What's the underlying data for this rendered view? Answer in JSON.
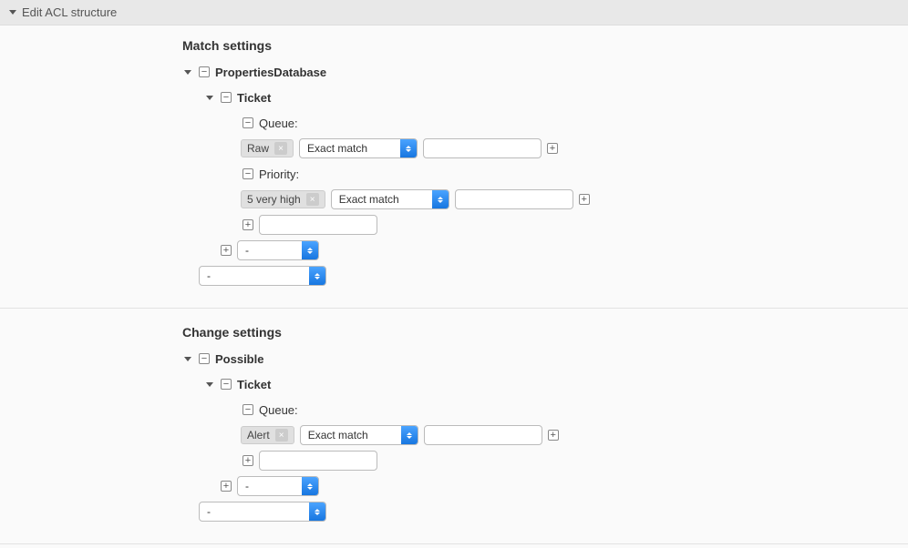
{
  "panel": {
    "title": "Edit ACL structure"
  },
  "match": {
    "title": "Match settings",
    "root": "PropertiesDatabase",
    "ticket": "Ticket",
    "queue": {
      "label": "Queue:",
      "tag": "Raw",
      "match_mode": "Exact match",
      "value": ""
    },
    "priority": {
      "label": "Priority:",
      "tag": "5 very high",
      "match_mode": "Exact match",
      "value": ""
    },
    "new_field_value": "",
    "field_select": "-",
    "root_select": "-"
  },
  "change": {
    "title": "Change settings",
    "root": "Possible",
    "ticket": "Ticket",
    "queue": {
      "label": "Queue:",
      "tag": "Alert",
      "match_mode": "Exact match",
      "value": ""
    },
    "new_field_value": "",
    "field_select": "-",
    "root_select": "-"
  }
}
